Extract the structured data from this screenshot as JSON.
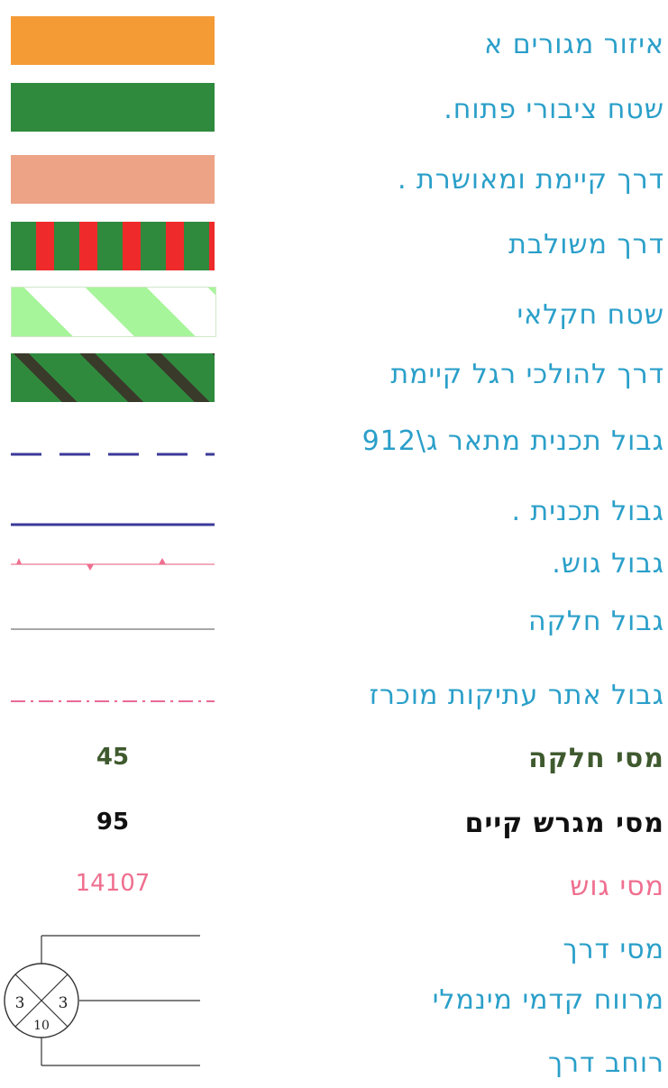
{
  "legend": {
    "items": [
      {
        "label": "איזור מגורים א",
        "symbol": "orange-fill",
        "color": "#f59b36"
      },
      {
        "label": "שטח ציבורי פתוח.",
        "symbol": "dark-green-fill",
        "color": "#2f8a3e"
      },
      {
        "label": "דרך קיימת ומאושרת .",
        "symbol": "salmon-fill",
        "color": "#eda386"
      },
      {
        "label": "דרך משולבת",
        "symbol": "green-red-vertical-stripes"
      },
      {
        "label": "שטח חקלאי",
        "symbol": "light-green-diagonal-stripes"
      },
      {
        "label": "דרך להולכי רגל קיימת",
        "symbol": "green-dark-diagonal-stripes"
      },
      {
        "label": "גבול תכנית  מתאר ג\\912",
        "symbol": "blue-dashed-line",
        "color": "#3b3a9a"
      },
      {
        "label": "גבול תכנית .",
        "symbol": "blue-solid-line",
        "color": "#3b3a9a"
      },
      {
        "label": "גבול גוש.",
        "symbol": "pink-line-with-triangles",
        "color": "#ef6f8f"
      },
      {
        "label": "גבול חלקה",
        "symbol": "gray-thin-line",
        "color": "#888888"
      },
      {
        "label": "גבול אתר עתיקות מוכרז",
        "symbol": "pink-dash-dot-line",
        "color": "#e8558a"
      },
      {
        "label": "מסי חלקה",
        "sample": "45"
      },
      {
        "label": "מסי מגרש קיים",
        "sample": "95"
      },
      {
        "label": "מסי גוש",
        "sample": "14107"
      },
      {
        "label": "מסי דרך"
      },
      {
        "label": "מרווח קדמי מינמלי"
      },
      {
        "label": "רוחב דרך"
      }
    ],
    "road_symbol": {
      "left": "3",
      "right": "3",
      "bottom": "10"
    }
  }
}
